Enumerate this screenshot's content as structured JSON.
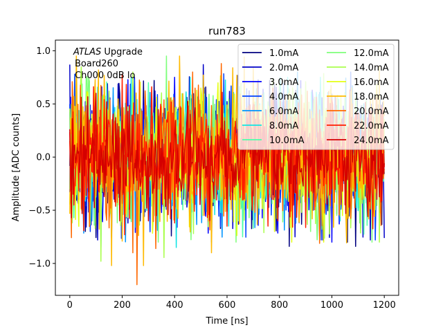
{
  "chart_data": {
    "type": "line",
    "title": "run783",
    "xlabel": "Time [ns]",
    "ylabel": "Amplitude [ADC counts]",
    "xlim": [
      -55,
      1255
    ],
    "ylim": [
      -1.3,
      1.1
    ],
    "xticks": [
      0,
      200,
      400,
      600,
      800,
      1000,
      1200
    ],
    "yticks": [
      -1.0,
      -0.5,
      0.0,
      0.5,
      1.0
    ],
    "xtick_labels": [
      "0",
      "200",
      "400",
      "600",
      "800",
      "1000",
      "1200"
    ],
    "ytick_labels": [
      "−1.0",
      "−0.5",
      "0.0",
      "0.5",
      "1.0"
    ],
    "grid": false,
    "legend_position": "top-right",
    "annotation": {
      "line1_italic": "ATLAS",
      "line1_rest": " Upgrade",
      "line2": "Board260",
      "line3": "Ch000 0dB lo"
    },
    "sample_spacing_ns": 3.125,
    "sample_count": 385,
    "series": [
      {
        "name": "1.0mA",
        "color": "#00007f",
        "seed": 11,
        "amp": 0.3,
        "min": -0.84,
        "max": 0.72,
        "peaks": [
          [
            1090,
            -0.84
          ],
          [
            1060,
            -0.8
          ],
          [
            60,
            -0.7
          ],
          [
            700,
            0.55
          ]
        ]
      },
      {
        "name": "2.0mA",
        "color": "#0000c8",
        "seed": 23,
        "amp": 0.3,
        "min": -0.78,
        "max": 0.87,
        "peaks": [
          [
            0,
            0.87
          ],
          [
            860,
            -0.75
          ],
          [
            40,
            0.65
          ]
        ]
      },
      {
        "name": "3.0mA",
        "color": "#0000ff",
        "seed": 37,
        "amp": 0.3,
        "min": -0.8,
        "max": 0.8,
        "peaks": [
          [
            1000,
            -0.8
          ],
          [
            400,
            0.75
          ]
        ]
      },
      {
        "name": "4.0mA",
        "color": "#0040ff",
        "seed": 41,
        "amp": 0.3,
        "min": -0.78,
        "max": 0.8,
        "peaks": [
          [
            20,
            0.78
          ],
          [
            960,
            -0.78
          ]
        ]
      },
      {
        "name": "6.0mA",
        "color": "#0094ff",
        "seed": 53,
        "amp": 0.3,
        "min": -0.8,
        "max": 0.8,
        "peaks": [
          [
            160,
            -0.75
          ],
          [
            1180,
            0.7
          ]
        ]
      },
      {
        "name": "8.0mA",
        "color": "#12e4e4",
        "seed": 67,
        "amp": 0.3,
        "min": -0.85,
        "max": 0.75,
        "peaks": [
          [
            120,
            -0.85
          ],
          [
            420,
            0.6
          ]
        ]
      },
      {
        "name": "10.0mA",
        "color": "#4dffaa",
        "seed": 71,
        "amp": 0.3,
        "min": -0.8,
        "max": 0.8,
        "peaks": [
          [
            300,
            0.7
          ],
          [
            660,
            -0.75
          ]
        ]
      },
      {
        "name": "12.0mA",
        "color": "#7dff7a",
        "seed": 83,
        "amp": 0.3,
        "min": -0.8,
        "max": 0.95,
        "peaks": [
          [
            370,
            0.95
          ],
          [
            920,
            -0.7
          ]
        ]
      },
      {
        "name": "14.0mA",
        "color": "#aaff4d",
        "seed": 97,
        "amp": 0.32,
        "min": -0.98,
        "max": 0.85,
        "peaks": [
          [
            120,
            -0.98
          ],
          [
            1180,
            -0.8
          ],
          [
            240,
            0.8
          ]
        ]
      },
      {
        "name": "16.0mA",
        "color": "#e4ff12",
        "seed": 101,
        "amp": 0.3,
        "min": -0.8,
        "max": 0.8,
        "peaks": [
          [
            500,
            0.65
          ],
          [
            780,
            -0.7
          ]
        ]
      },
      {
        "name": "18.0mA",
        "color": "#ffb900",
        "seed": 113,
        "amp": 0.34,
        "min": -1.02,
        "max": 0.95,
        "peaks": [
          [
            420,
            0.95
          ],
          [
            280,
            -1.02
          ],
          [
            540,
            -0.9
          ],
          [
            700,
            0.85
          ]
        ]
      },
      {
        "name": "20.0mA",
        "color": "#ff6800",
        "seed": 127,
        "amp": 0.32,
        "min": -1.2,
        "max": 0.88,
        "peaks": [
          [
            255,
            -1.2
          ],
          [
            240,
            -0.9
          ],
          [
            470,
            0.8
          ]
        ]
      },
      {
        "name": "22.0mA",
        "color": "#ff1d00",
        "seed": 131,
        "amp": 0.28,
        "min": -0.75,
        "max": 0.8,
        "peaks": [
          [
            200,
            0.78
          ],
          [
            600,
            -0.65
          ]
        ]
      },
      {
        "name": "24.0mA",
        "color": "#d40000",
        "seed": 139,
        "amp": 0.22,
        "min": -0.6,
        "max": 0.65,
        "peaks": [
          [
            100,
            0.6
          ],
          [
            330,
            -0.55
          ]
        ]
      }
    ]
  }
}
